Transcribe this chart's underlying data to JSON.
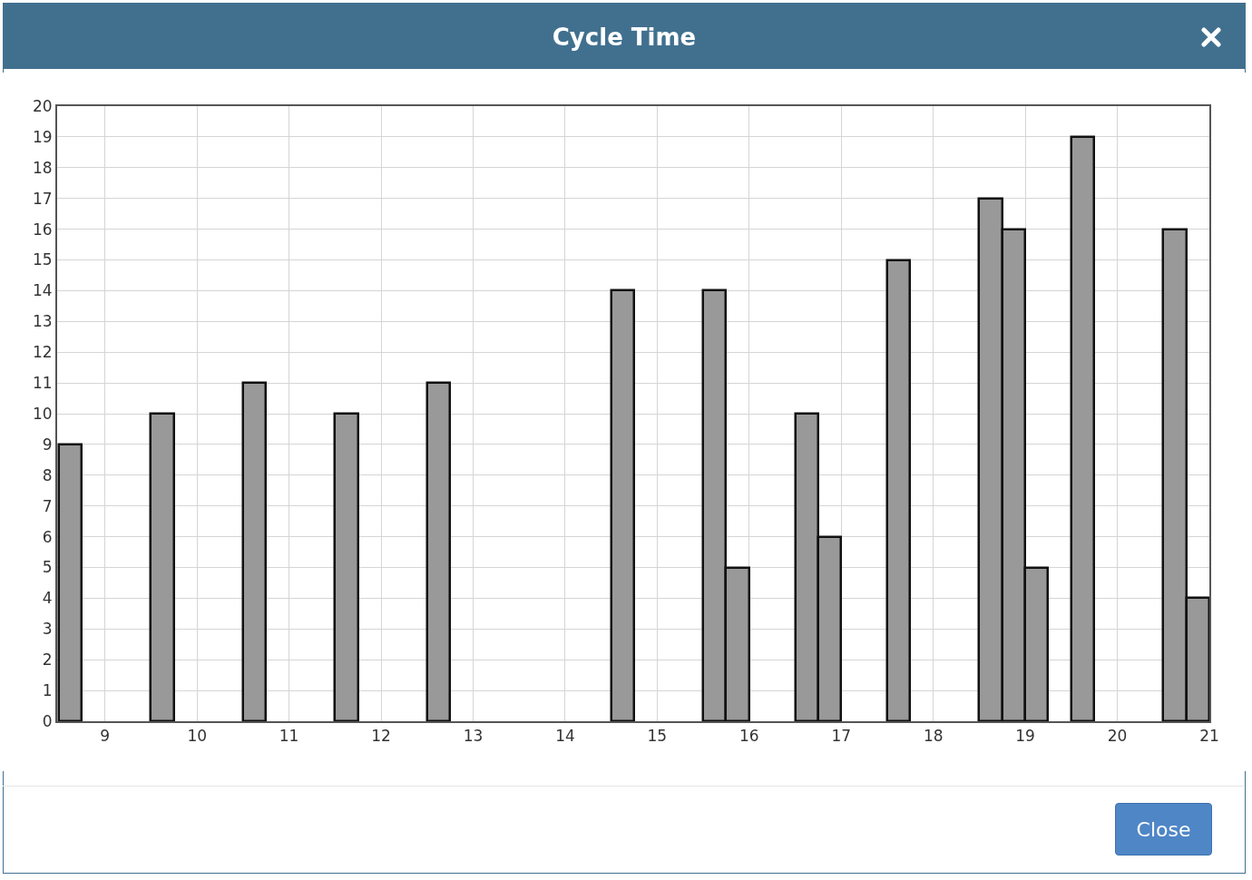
{
  "chart_data": {
    "type": "bar",
    "title": "Cycle Time",
    "x": [
      8.625,
      9.625,
      10.625,
      11.625,
      12.625,
      14.625,
      15.625,
      15.875,
      16.625,
      16.875,
      17.625,
      18.625,
      18.875,
      19.125,
      19.625,
      20.625,
      20.875
    ],
    "values": [
      9,
      10,
      11,
      10,
      11,
      14,
      14,
      5,
      10,
      6,
      15,
      17,
      16,
      5,
      19,
      16,
      4
    ],
    "color": "#999999",
    "xlim": [
      8.48,
      21
    ],
    "xticks": [
      9,
      10,
      11,
      12,
      13,
      14,
      15,
      16,
      17,
      18,
      19,
      20,
      21
    ],
    "ylim": [
      0,
      20
    ],
    "yticks": [
      0,
      1,
      2,
      3,
      4,
      5,
      6,
      7,
      8,
      9,
      10,
      11,
      12,
      13,
      14,
      15,
      16,
      17,
      18,
      19,
      20
    ],
    "grid": true,
    "legend": false,
    "annotations": [
      "Close"
    ]
  }
}
